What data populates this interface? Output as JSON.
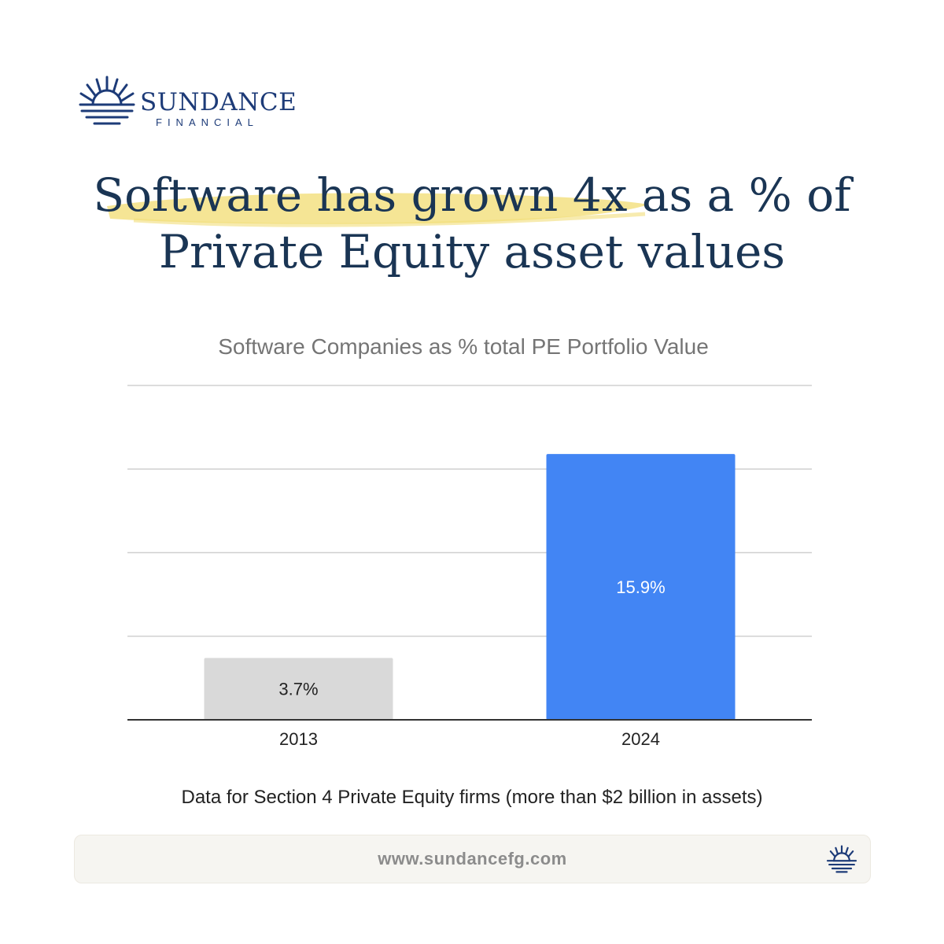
{
  "brand": {
    "name": "SUNDANCE",
    "tagline": "FINANCIAL",
    "logo_icon": "sunrise-icon",
    "color": "#1d3b78"
  },
  "headline": {
    "line1": "Software has grown 4x as a % of",
    "line2": "Private Equity asset values",
    "highlight_color": "#f2de7a"
  },
  "chart_data": {
    "type": "bar",
    "title": "Software Companies as % total PE Portfolio Value",
    "categories": [
      "2013",
      "2024"
    ],
    "values": [
      3.7,
      15.9
    ],
    "data_labels": [
      "3.7%",
      "15.9%"
    ],
    "colors": [
      "#d9d9d9",
      "#4285f4"
    ],
    "ylim": [
      0,
      20
    ],
    "grid": true,
    "xlabel": "",
    "ylabel": ""
  },
  "footnote": "Data for Section 4 Private Equity firms (more than $2 billion in assets)",
  "footer": {
    "url": "www.sundancefg.com",
    "icon": "sunrise-icon"
  }
}
